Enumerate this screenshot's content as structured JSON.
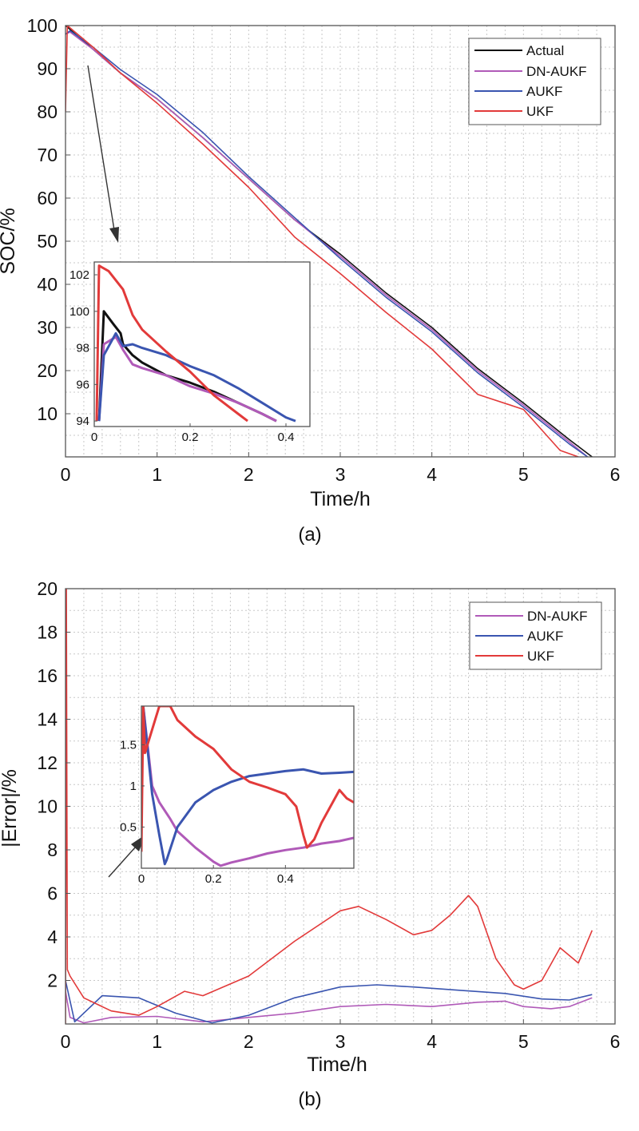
{
  "figure": {
    "caption_a": "(a)",
    "caption_b": "(b)"
  },
  "colors": {
    "Actual": "#111111",
    "DN-AUKF": "#b05ab8",
    "AUKF": "#3a55b0",
    "UKF": "#e23a3a"
  },
  "chart_data": [
    {
      "id": "a",
      "type": "line",
      "title": "",
      "xlabel": "Time/h",
      "ylabel": "SOC/%",
      "xlim": [
        0,
        6
      ],
      "ylim": [
        0,
        100
      ],
      "xticks": [
        0,
        1,
        2,
        3,
        4,
        5,
        6
      ],
      "yticks": [
        10,
        20,
        30,
        40,
        50,
        60,
        70,
        80,
        90,
        100
      ],
      "grid": true,
      "legend": "top-right",
      "series": [
        {
          "name": "Actual",
          "x": [
            0,
            0.3,
            0.6,
            1,
            1.5,
            2,
            2.5,
            3,
            3.5,
            4,
            4.5,
            5,
            5.5,
            5.75
          ],
          "y": [
            100,
            94.5,
            89,
            83,
            74,
            64.5,
            55,
            47,
            38,
            30,
            20.5,
            12.5,
            4,
            0
          ]
        },
        {
          "name": "DN-AUKF",
          "x": [
            0,
            0.05,
            0.3,
            0.6,
            1,
            1.5,
            2,
            2.5,
            3,
            3.5,
            4,
            4.5,
            5,
            5.5,
            5.7
          ],
          "y": [
            98,
            98.5,
            94.5,
            89,
            83,
            74,
            64.5,
            55,
            46.5,
            37.5,
            29.5,
            20,
            12,
            3.5,
            0
          ]
        },
        {
          "name": "AUKF",
          "x": [
            0,
            0.05,
            0.3,
            0.6,
            1,
            1.5,
            2,
            2.5,
            3,
            3.5,
            4,
            4.5,
            5,
            5.5,
            5.7
          ],
          "y": [
            98,
            98.8,
            95,
            89.8,
            84,
            75.2,
            65,
            55.5,
            46,
            37,
            29,
            19.5,
            11.5,
            3,
            0
          ]
        },
        {
          "name": "UKF",
          "x": [
            0,
            0.02,
            0.3,
            0.6,
            1,
            1.5,
            2,
            2.5,
            3,
            3.5,
            4,
            4.5,
            5,
            5.4,
            5.6
          ],
          "y": [
            80,
            100,
            95,
            89,
            82,
            72.5,
            62.5,
            51,
            42.5,
            33.5,
            25,
            14.5,
            11,
            1.5,
            0
          ]
        }
      ],
      "inset": {
        "xlim": [
          0,
          0.45
        ],
        "ylim": [
          93.7,
          102.7
        ],
        "xticks": [
          0,
          0.2,
          0.4
        ],
        "yticks": [
          94,
          96,
          98,
          100,
          102
        ],
        "series": [
          {
            "name": "Actual",
            "x": [
              0.01,
              0.02,
              0.04,
              0.055,
              0.06,
              0.08,
              0.1,
              0.15,
              0.2,
              0.25,
              0.3,
              0.35,
              0.38
            ],
            "y": [
              94,
              100,
              99.3,
              98.8,
              98.2,
              97.6,
              97.2,
              96.5,
              96.1,
              95.6,
              95,
              94.4,
              94
            ]
          },
          {
            "name": "DN-AUKF",
            "x": [
              0.01,
              0.02,
              0.045,
              0.06,
              0.08,
              0.1,
              0.15,
              0.2,
              0.25,
              0.3,
              0.35,
              0.38
            ],
            "y": [
              94,
              98.2,
              98.6,
              97.9,
              97.1,
              96.9,
              96.5,
              95.9,
              95.5,
              95,
              94.4,
              94
            ]
          },
          {
            "name": "AUKF",
            "x": [
              0.01,
              0.02,
              0.045,
              0.06,
              0.08,
              0.1,
              0.15,
              0.2,
              0.25,
              0.3,
              0.35,
              0.4,
              0.42
            ],
            "y": [
              94,
              97.6,
              98.8,
              98.1,
              98.2,
              98,
              97.6,
              97,
              96.5,
              95.8,
              95,
              94.2,
              94
            ]
          },
          {
            "name": "UKF",
            "x": [
              0.005,
              0.01,
              0.03,
              0.06,
              0.08,
              0.1,
              0.15,
              0.2,
              0.25,
              0.3,
              0.32
            ],
            "y": [
              94,
              102.5,
              102.2,
              101.2,
              99.8,
              99,
              97.8,
              96.7,
              95.4,
              94.4,
              94
            ]
          }
        ]
      }
    },
    {
      "id": "b",
      "type": "line",
      "title": "",
      "xlabel": "Time/h",
      "ylabel": "|Error|/%",
      "xlim": [
        0,
        6
      ],
      "ylim": [
        0,
        20
      ],
      "xticks": [
        0,
        1,
        2,
        3,
        4,
        5,
        6
      ],
      "yticks": [
        2,
        4,
        6,
        8,
        10,
        12,
        14,
        16,
        18,
        20
      ],
      "grid": true,
      "legend": "top-right",
      "series": [
        {
          "name": "DN-AUKF",
          "x": [
            0,
            0.05,
            0.2,
            0.5,
            1,
            1.5,
            2,
            2.5,
            3,
            3.5,
            4,
            4.5,
            4.8,
            5,
            5.3,
            5.5,
            5.75
          ],
          "y": [
            1.5,
            0.3,
            0.05,
            0.3,
            0.35,
            0.1,
            0.3,
            0.5,
            0.8,
            0.9,
            0.8,
            1.0,
            1.05,
            0.8,
            0.7,
            0.8,
            1.2
          ]
        },
        {
          "name": "AUKF",
          "x": [
            0,
            0.1,
            0.4,
            0.8,
            1.2,
            1.6,
            2,
            2.5,
            3,
            3.4,
            3.8,
            4.3,
            4.8,
            5.2,
            5.5,
            5.75
          ],
          "y": [
            2,
            0.1,
            1.3,
            1.2,
            0.5,
            0.05,
            0.4,
            1.2,
            1.7,
            1.8,
            1.7,
            1.55,
            1.4,
            1.15,
            1.1,
            1.35
          ]
        },
        {
          "name": "UKF",
          "x": [
            0,
            0.01,
            0.02,
            0.05,
            0.2,
            0.5,
            0.8,
            1,
            1.3,
            1.5,
            2,
            2.5,
            3,
            3.2,
            3.5,
            3.8,
            4,
            4.2,
            4.4,
            4.5,
            4.7,
            4.9,
            5,
            5.2,
            5.4,
            5.6,
            5.75
          ],
          "y": [
            0,
            20,
            2.5,
            2.2,
            1.2,
            0.6,
            0.4,
            0.8,
            1.5,
            1.3,
            2.2,
            3.8,
            5.2,
            5.4,
            4.8,
            4.1,
            4.3,
            5.0,
            5.9,
            5.4,
            3.0,
            1.8,
            1.6,
            2.0,
            3.5,
            2.8,
            4.3
          ]
        }
      ],
      "inset": {
        "xlim": [
          0,
          0.59
        ],
        "ylim": [
          0,
          1.97
        ],
        "xticks": [
          0,
          0.2,
          0.4
        ],
        "yticks": [
          0.5,
          1,
          1.5
        ],
        "series": [
          {
            "name": "DN-AUKF",
            "x": [
              0.005,
              0.03,
              0.05,
              0.08,
              0.1,
              0.15,
              0.2,
              0.22,
              0.25,
              0.3,
              0.35,
              0.4,
              0.45,
              0.5,
              0.55,
              0.59
            ],
            "y": [
              1.97,
              1.0,
              0.8,
              0.6,
              0.45,
              0.25,
              0.08,
              0.03,
              0.07,
              0.12,
              0.18,
              0.22,
              0.25,
              0.3,
              0.33,
              0.37
            ]
          },
          {
            "name": "AUKF",
            "x": [
              0.005,
              0.03,
              0.05,
              0.065,
              0.07,
              0.1,
              0.15,
              0.2,
              0.25,
              0.3,
              0.35,
              0.4,
              0.45,
              0.5,
              0.55,
              0.59
            ],
            "y": [
              1.97,
              0.9,
              0.4,
              0.05,
              0.1,
              0.5,
              0.8,
              0.95,
              1.05,
              1.12,
              1.15,
              1.18,
              1.2,
              1.15,
              1.16,
              1.17
            ]
          },
          {
            "name": "UKF",
            "x": [
              0.0,
              0.005,
              0.01,
              0.05,
              0.08,
              0.1,
              0.15,
              0.2,
              0.25,
              0.3,
              0.35,
              0.4,
              0.43,
              0.45,
              0.46,
              0.48,
              0.5,
              0.55,
              0.57,
              0.59
            ],
            "y": [
              0.2,
              1.97,
              1.4,
              1.97,
              1.97,
              1.8,
              1.6,
              1.45,
              1.2,
              1.05,
              0.98,
              0.9,
              0.75,
              0.4,
              0.25,
              0.35,
              0.55,
              0.95,
              0.85,
              0.8
            ]
          }
        ]
      }
    }
  ]
}
